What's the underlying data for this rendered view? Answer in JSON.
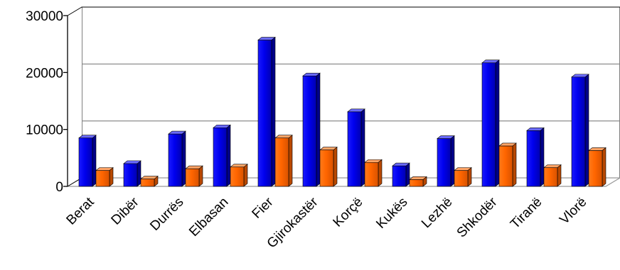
{
  "chart_data": {
    "type": "bar",
    "categories": [
      "Berat",
      "Dibër",
      "Durrës",
      "Elbasan",
      "Fier",
      "Gjirokastër",
      "Korçë",
      "Kukës",
      "Lezhë",
      "Shkodër",
      "Tiranë",
      "Vlorë"
    ],
    "series": [
      {
        "values": [
          8500,
          4000,
          9200,
          10300,
          25700,
          19400,
          13100,
          3600,
          8400,
          21700,
          9800,
          19200
        ]
      },
      {
        "values": [
          2800,
          1300,
          3100,
          3400,
          8500,
          6400,
          4200,
          1200,
          2800,
          7100,
          3300,
          6300
        ]
      }
    ],
    "yticks": [
      0,
      10000,
      20000,
      30000
    ],
    "ylim": [
      0,
      30000
    ],
    "grid": true,
    "colors": {
      "series1": "#0000ff",
      "series2": "#ff6600"
    },
    "title": "",
    "xlabel": "",
    "ylabel": ""
  }
}
